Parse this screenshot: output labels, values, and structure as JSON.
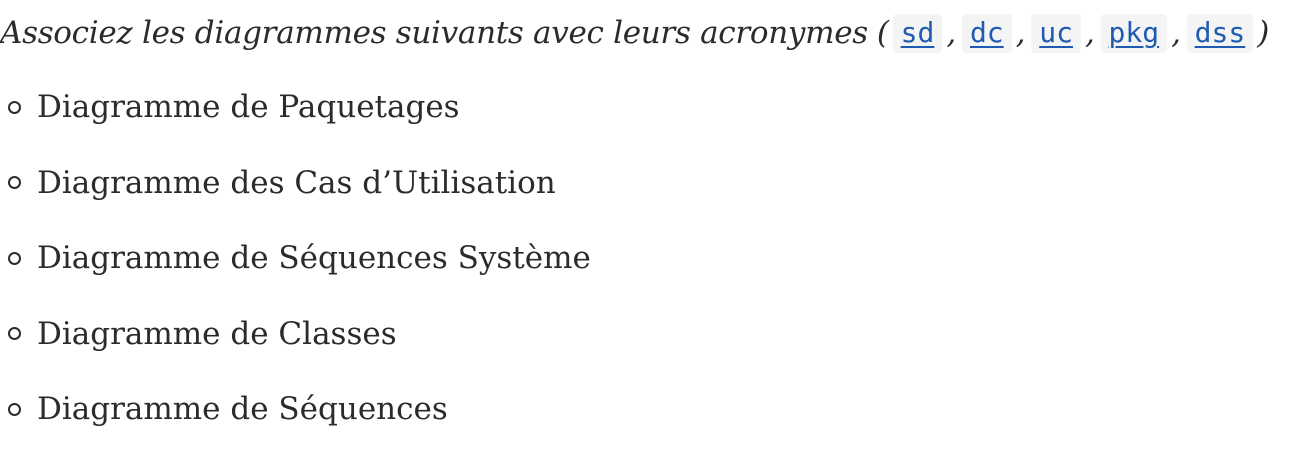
{
  "question": {
    "text": "Associez les diagrammes suivants avec leurs acronymes",
    "open_paren": "(",
    "close_paren": ")",
    "separator": ",",
    "acronyms": [
      "sd",
      "dc",
      "uc",
      "pkg",
      "dss"
    ]
  },
  "options": [
    "Diagramme de Paquetages",
    "Diagramme des Cas d’Utilisation",
    "Diagramme de Séquences Système",
    "Diagramme de Classes",
    "Diagramme de Séquences"
  ],
  "colors": {
    "link": "#1f5bb0",
    "chip_background": "#f4f4f4",
    "text": "#2b2b2b"
  },
  "icons": {
    "bullet": "circle-outline-bullet-icon"
  }
}
